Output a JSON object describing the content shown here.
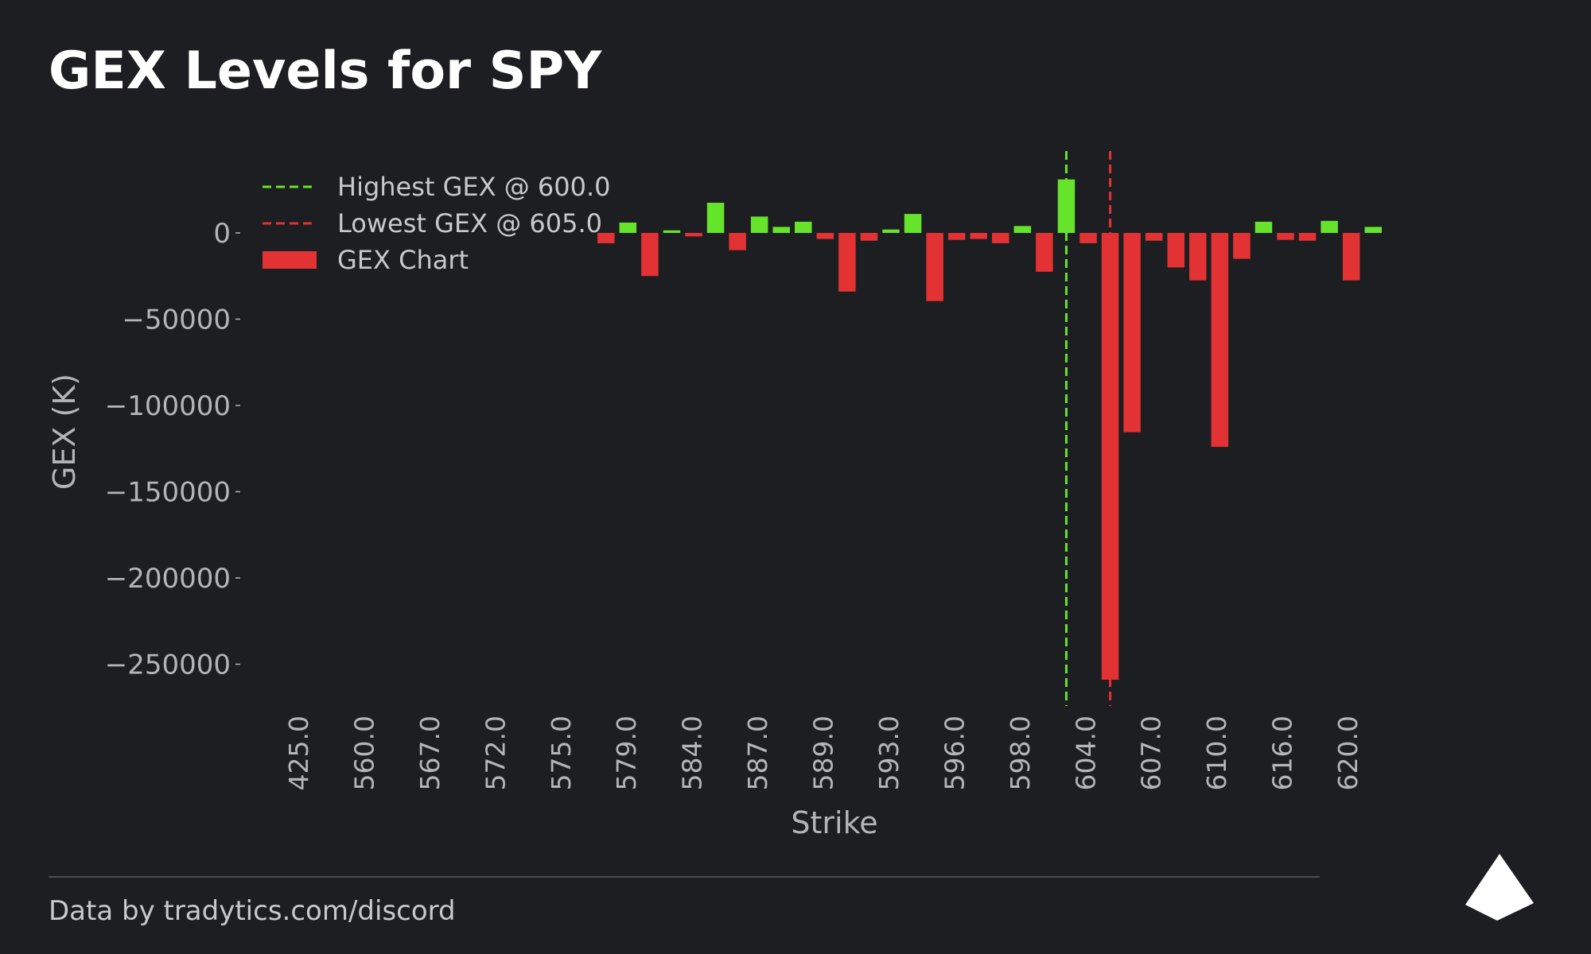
{
  "header": {
    "title": "GEX Levels for SPY"
  },
  "footer": {
    "credit": "Data by tradytics.com/discord"
  },
  "colors": {
    "background": "#1d1e21",
    "positive": "#66e32b",
    "negative": "#e33234",
    "text": "#c8c9cc",
    "axis_text": "#b4b5b8"
  },
  "chart_data": {
    "type": "bar",
    "title": "GEX Levels for SPY",
    "xlabel": "Strike",
    "ylabel": "GEX (K)",
    "ylim": [
      -275000,
      48000
    ],
    "yticks": [
      0,
      -50000,
      -100000,
      -150000,
      -200000,
      -250000
    ],
    "ytick_labels": [
      "0",
      "−50000",
      "−100000",
      "−150000",
      "−200000",
      "−250000"
    ],
    "xtick_labels": [
      "425.0",
      "560.0",
      "567.0",
      "572.0",
      "575.0",
      "579.0",
      "584.0",
      "587.0",
      "589.0",
      "593.0",
      "596.0",
      "598.0",
      "604.0",
      "607.0",
      "610.0",
      "616.0",
      "620.0"
    ],
    "values": [
      -6000,
      6000,
      -25000,
      1500,
      -2000,
      17500,
      -10000,
      9500,
      3500,
      6500,
      -3500,
      -34000,
      -4500,
      2000,
      11000,
      -39500,
      -4000,
      -3500,
      -6000,
      4000,
      -22500,
      31000,
      -6000,
      -259000,
      -115500,
      -4500,
      -20000,
      -27500,
      -124000,
      -15000,
      6500,
      -4000,
      -4500,
      7000,
      -27500,
      3500
    ],
    "vlines": [
      {
        "label": "Highest GEX @ 600.0",
        "index": 21,
        "color": "#66e32b"
      },
      {
        "label": "Lowest GEX @ 605.0",
        "index": 23,
        "color": "#e33234"
      }
    ],
    "legend": {
      "position": "top-left",
      "entries": [
        "Highest GEX @ 600.0",
        "Lowest GEX @ 605.0",
        "GEX Chart"
      ]
    }
  }
}
